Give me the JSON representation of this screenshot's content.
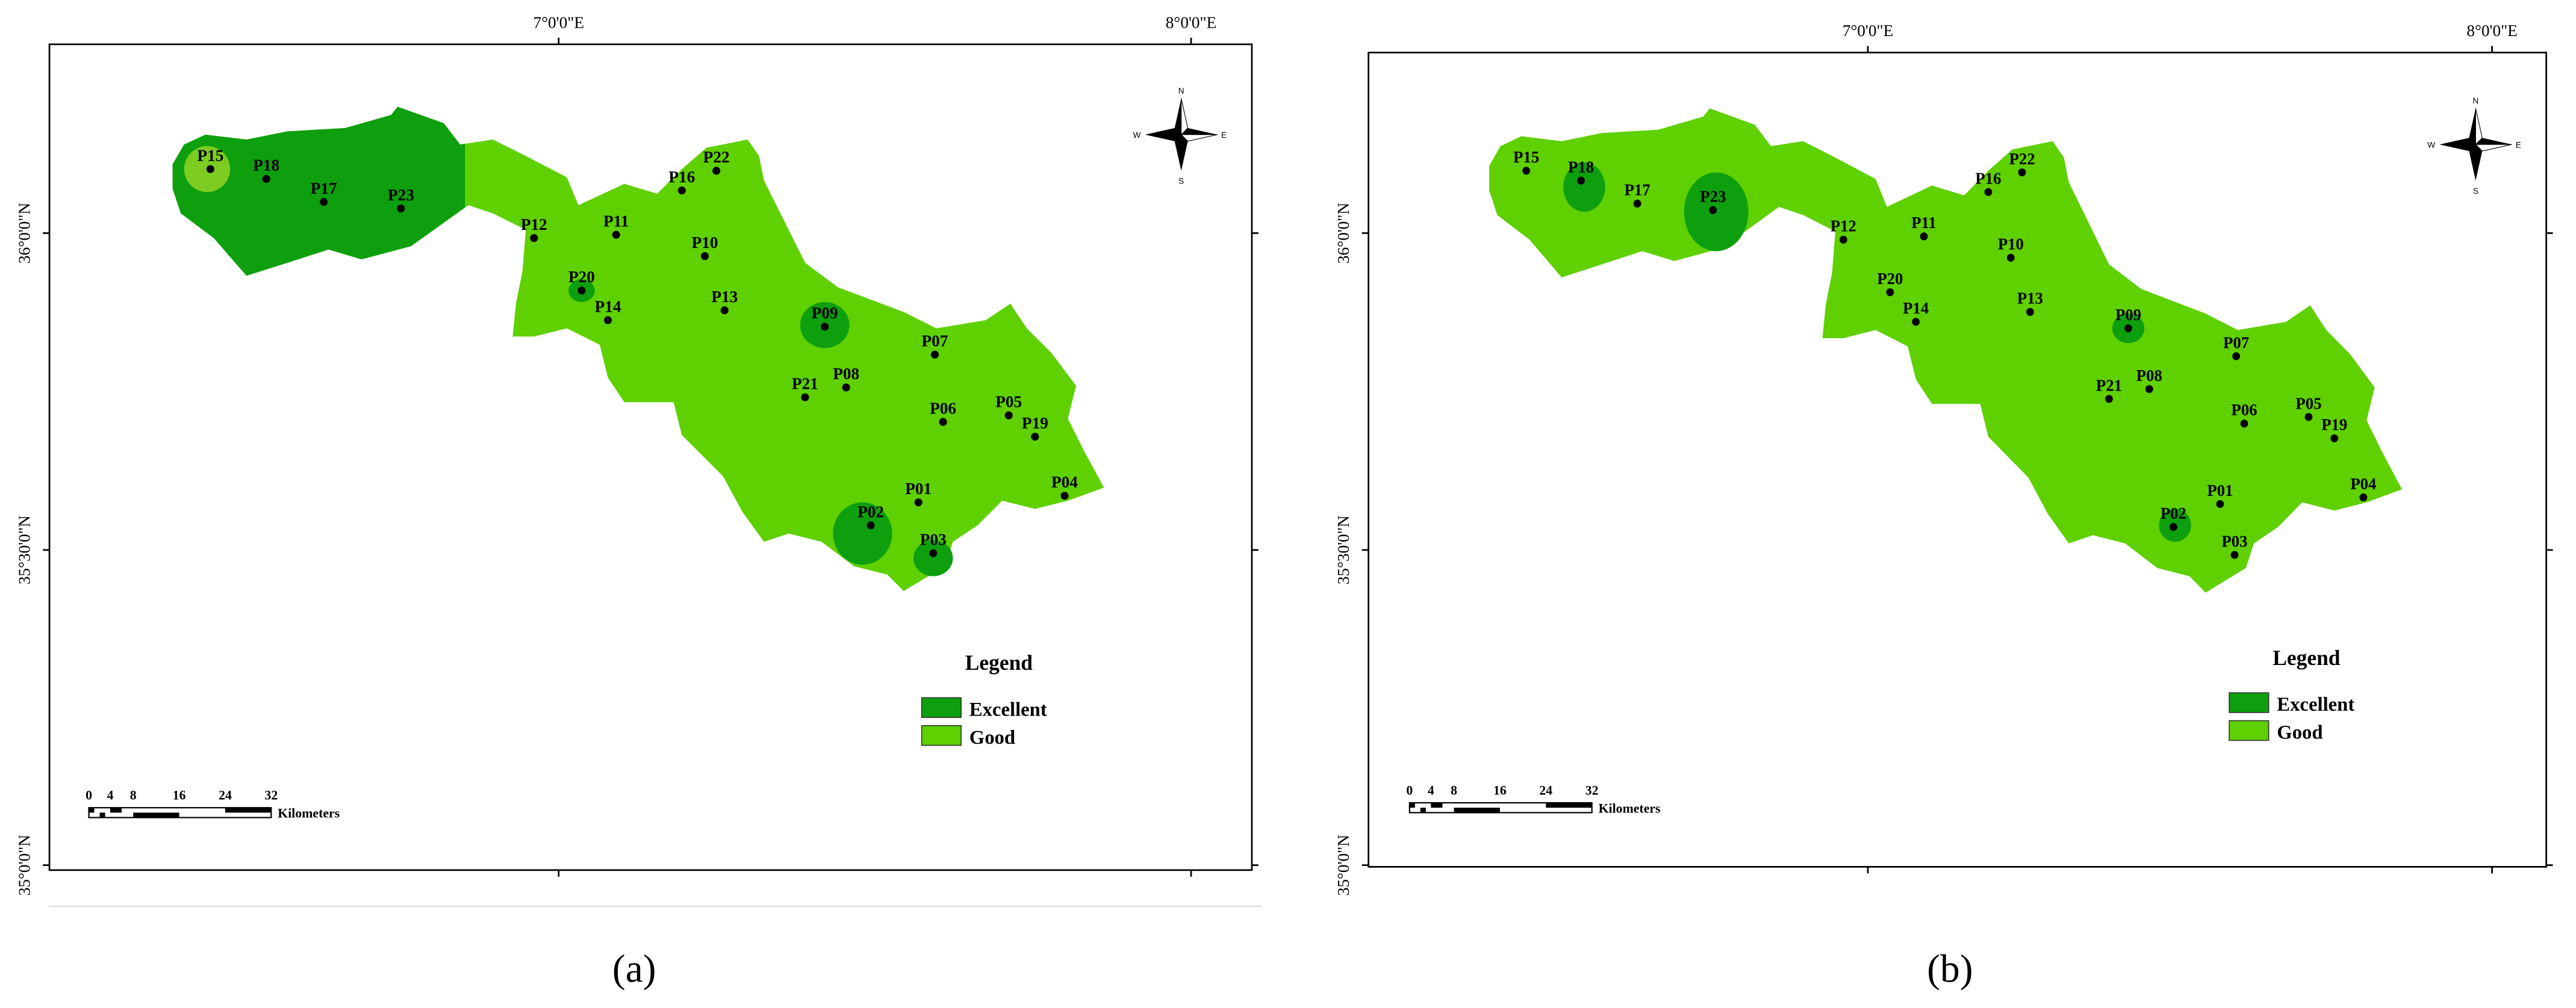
{
  "panels": [
    {
      "caption": "(a)",
      "lon_labels": [
        "7°0'0\"E",
        "8°0'0\"E"
      ],
      "lat_labels": [
        "36°0'0\"N",
        "35°30'0\"N",
        "35°0'0\"N"
      ],
      "points": [
        "P15",
        "P18",
        "P17",
        "P23",
        "P12",
        "P11",
        "P16",
        "P22",
        "P10",
        "P20",
        "P14",
        "P13",
        "P09",
        "P07",
        "P21",
        "P08",
        "P06",
        "P05",
        "P19",
        "P04",
        "P01",
        "P02",
        "P03"
      ],
      "legend": {
        "title": "Legend",
        "items": [
          "Excellent",
          "Good"
        ]
      },
      "scale": {
        "ticks": [
          "0",
          "4",
          "8",
          "16",
          "24",
          "32"
        ],
        "unit": "Kilometers"
      },
      "compass": [
        "N",
        "E",
        "S",
        "W"
      ]
    },
    {
      "caption": "(b)",
      "lon_labels": [
        "7°0'0\"E",
        "8°0'0\"E"
      ],
      "lat_labels": [
        "36°0'0\"N",
        "35°30'0\"N",
        "35°0'0\"N"
      ],
      "points": [
        "P15",
        "P18",
        "P17",
        "P23",
        "P12",
        "P11",
        "P16",
        "P22",
        "P10",
        "P20",
        "P14",
        "P13",
        "P09",
        "P07",
        "P21",
        "P08",
        "P06",
        "P05",
        "P19",
        "P04",
        "P01",
        "P02",
        "P03"
      ],
      "legend": {
        "title": "Legend",
        "items": [
          "Excellent",
          "Good"
        ]
      },
      "scale": {
        "ticks": [
          "0",
          "4",
          "8",
          "16",
          "24",
          "32"
        ],
        "unit": "Kilometers"
      },
      "compass": [
        "N",
        "E",
        "S",
        "W"
      ]
    }
  ]
}
